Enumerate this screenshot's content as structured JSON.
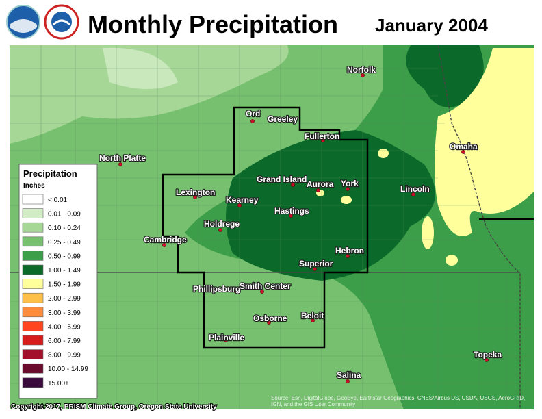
{
  "header": {
    "title": "Monthly Precipitation",
    "date": "January 2004"
  },
  "legend": {
    "title": "Precipitation",
    "units": "Inches",
    "items": [
      {
        "label": "< 0.01",
        "color": "#ffffff"
      },
      {
        "label": "0.01 - 0.09",
        "color": "#d2ecc6"
      },
      {
        "label": "0.10 - 0.24",
        "color": "#a6d797"
      },
      {
        "label": "0.25 - 0.49",
        "color": "#76c06f"
      },
      {
        "label": "0.50 - 0.99",
        "color": "#3c9e48"
      },
      {
        "label": "1.00 - 1.49",
        "color": "#0b6a2a"
      },
      {
        "label": "1.50 - 1.99",
        "color": "#ffff9c"
      },
      {
        "label": "2.00 - 2.99",
        "color": "#ffc04a"
      },
      {
        "label": "3.00 - 3.99",
        "color": "#ff8c3c"
      },
      {
        "label": "4.00 - 5.99",
        "color": "#ff4420"
      },
      {
        "label": "6.00 - 7.99",
        "color": "#d81c1c"
      },
      {
        "label": "8.00 - 9.99",
        "color": "#a3102c"
      },
      {
        "label": "10.00 - 14.99",
        "color": "#6a0a2c"
      },
      {
        "label": "15.00+",
        "color": "#3a0a3c"
      }
    ]
  },
  "cities": [
    "Norfolk",
    "Ord",
    "Greeley",
    "Fullerton",
    "North Platte",
    "Grand Island",
    "Aurora",
    "York",
    "Lincoln",
    "Lexington",
    "Kearney",
    "Hastings",
    "Holdrege",
    "Cambridge",
    "Hebron",
    "Superior",
    "Phillipsburg",
    "Smith Center",
    "Osborne",
    "Beloit",
    "Plainville",
    "Salina",
    "Topeka",
    "Omaha"
  ],
  "copyright": "Copyright 2017, PRISM Climate Group, Oregon State University",
  "source": "Source: Esri, DigitalGlobe, GeoEye, Earthstar Geographics, CNES/Airbus DS, USDA, USGS, AeroGRID, IGN, and the GIS User Community"
}
